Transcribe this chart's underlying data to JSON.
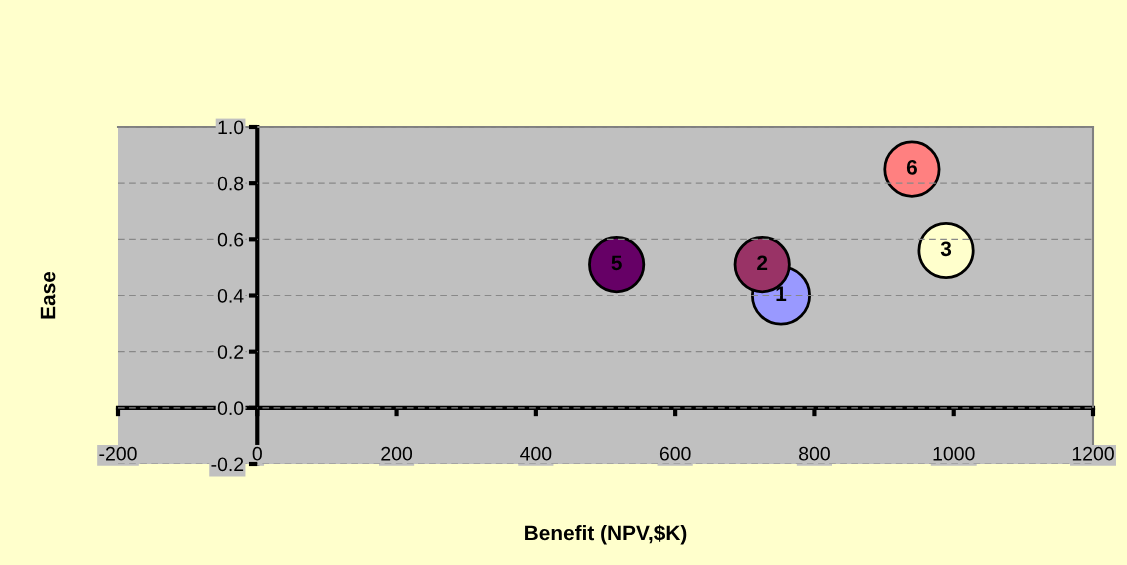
{
  "chart_data": {
    "type": "bubble",
    "xlabel": "Benefit (NPV,$K)",
    "ylabel": "Ease",
    "x": [
      752,
      725,
      989,
      516,
      940
    ],
    "values": [
      0.4,
      0.51,
      0.56,
      0.51,
      0.85
    ],
    "sizes": [
      1,
      0.9,
      0.9,
      0.9,
      0.9
    ],
    "colors": [
      "#9999ff",
      "#993366",
      "#ffffcc",
      "#660066",
      "#ff8080"
    ],
    "annotations": [
      {
        "text": "1",
        "x": 752,
        "y": 0.4
      },
      {
        "text": "2",
        "x": 725,
        "y": 0.51
      },
      {
        "text": "3",
        "x": 989,
        "y": 0.56
      },
      {
        "text": "5",
        "x": 516,
        "y": 0.51
      },
      {
        "text": "6",
        "x": 940,
        "y": 0.85
      }
    ],
    "xlim": [
      -200,
      1200
    ],
    "xticks": [
      -200,
      0,
      200,
      400,
      600,
      800,
      1000,
      1200
    ],
    "ylim": [
      -0.2,
      1.0
    ],
    "yticks": [
      {
        "value": -0.2,
        "label": "-0.2"
      },
      {
        "value": 0,
        "label": "0.0"
      },
      {
        "value": 0.2,
        "label": "0.2"
      },
      {
        "value": 0.4,
        "label": "0.4"
      },
      {
        "value": 0.6,
        "label": "0.6"
      },
      {
        "value": 0.8,
        "label": "0.8"
      },
      {
        "value": 1.0,
        "label": "1.0"
      }
    ],
    "grid": "y"
  }
}
